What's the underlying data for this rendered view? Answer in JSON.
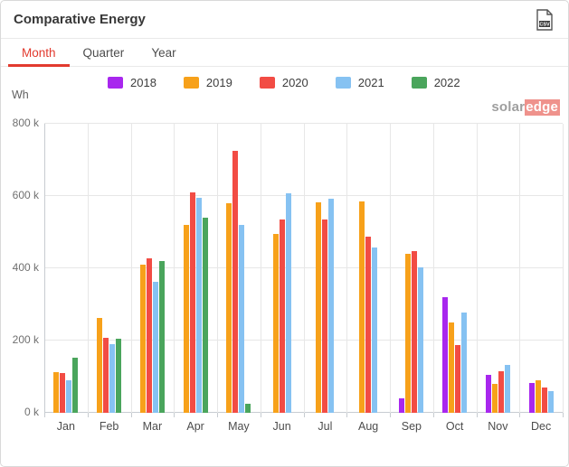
{
  "window": {
    "title": "Comparative Energy"
  },
  "toolbar": {
    "export_csv_tooltip": "CSV"
  },
  "tabs": {
    "items": [
      {
        "label": "Month",
        "active": true
      },
      {
        "label": "Quarter",
        "active": false
      },
      {
        "label": "Year",
        "active": false
      }
    ]
  },
  "watermark": {
    "part1": "solar",
    "part2": "edge"
  },
  "chart_data": {
    "type": "bar",
    "title": "Comparative Energy",
    "unit_label": "Wh",
    "xlabel": "",
    "ylabel": "Wh",
    "ylim": [
      0,
      800000
    ],
    "yticks": [
      "0 k",
      "200 k",
      "400 k",
      "600 k",
      "800 k"
    ],
    "grid": true,
    "legend_position": "top",
    "categories": [
      "Jan",
      "Feb",
      "Mar",
      "Apr",
      "May",
      "Jun",
      "Jul",
      "Aug",
      "Sep",
      "Oct",
      "Nov",
      "Dec"
    ],
    "values_in": "thousands of Wh (k)",
    "series": [
      {
        "name": "2018",
        "color": "#a827ee",
        "values": [
          null,
          null,
          null,
          null,
          null,
          null,
          null,
          null,
          40,
          320,
          106,
          82
        ]
      },
      {
        "name": "2019",
        "color": "#f7a11a",
        "values": [
          113,
          263,
          410,
          521,
          580,
          495,
          582,
          585,
          440,
          250,
          79,
          90
        ]
      },
      {
        "name": "2020",
        "color": "#f24c44",
        "values": [
          110,
          208,
          428,
          610,
          725,
          535,
          535,
          487,
          448,
          188,
          115,
          71
        ]
      },
      {
        "name": "2021",
        "color": "#86c2f2",
        "values": [
          90,
          191,
          363,
          595,
          520,
          608,
          593,
          458,
          403,
          278,
          132,
          61
        ]
      },
      {
        "name": "2022",
        "color": "#4aa55c",
        "values": [
          152,
          204,
          421,
          540,
          25,
          null,
          null,
          null,
          null,
          null,
          null,
          null
        ]
      }
    ]
  }
}
